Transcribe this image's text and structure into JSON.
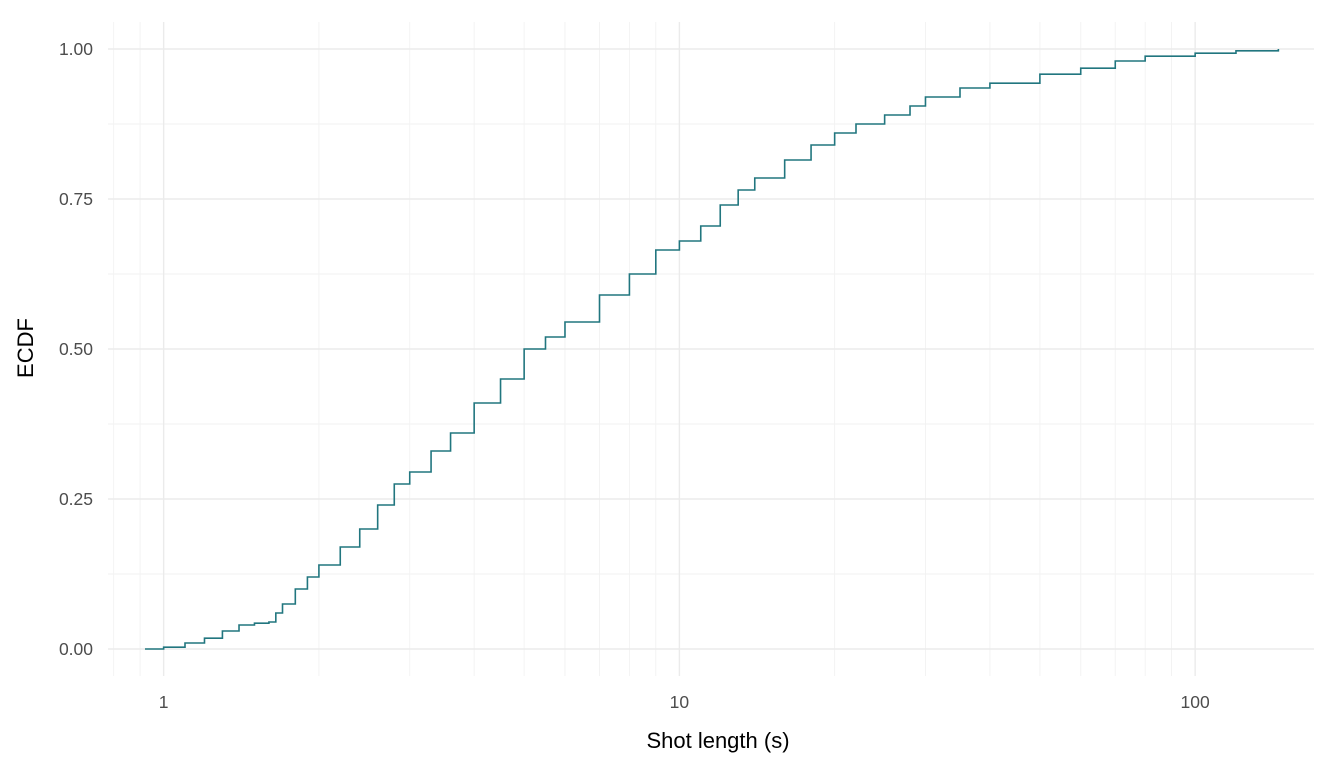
{
  "chart_data": {
    "type": "line",
    "step": true,
    "xlabel": "Shot length (s)",
    "ylabel": "ECDF",
    "x_scale": "log10",
    "xlim": [
      0.78,
      170
    ],
    "ylim": [
      -0.045,
      1.045
    ],
    "x_ticks": [
      1,
      10,
      100
    ],
    "x_tick_labels": [
      "1",
      "10",
      "100"
    ],
    "y_ticks": [
      0,
      0.25,
      0.5,
      0.75,
      1
    ],
    "y_tick_labels": [
      "0.00",
      "0.25",
      "0.50",
      "0.75",
      "1.00"
    ],
    "grid": true,
    "line_color": "#21767f",
    "series": [
      {
        "x": [
          0.92,
          1.0,
          1.1,
          1.2,
          1.3,
          1.4,
          1.5,
          1.6,
          1.65,
          1.7,
          1.8,
          1.9,
          2.0,
          2.2,
          2.4,
          2.6,
          2.8,
          3.0,
          3.3,
          3.6,
          4.0,
          4.5,
          5.0,
          5.5,
          6.0,
          7.0,
          8.0,
          9.0,
          10.0,
          11.0,
          12.0,
          13.0,
          14.0,
          16.0,
          18.0,
          20.0,
          22.0,
          25.0,
          28.0,
          30.0,
          35.0,
          40.0,
          50.0,
          60.0,
          70.0,
          80.0,
          100.0,
          120.0,
          145.0
        ],
        "y": [
          0.0,
          0.003,
          0.01,
          0.018,
          0.03,
          0.04,
          0.043,
          0.045,
          0.06,
          0.075,
          0.1,
          0.12,
          0.14,
          0.17,
          0.2,
          0.24,
          0.275,
          0.295,
          0.33,
          0.36,
          0.41,
          0.45,
          0.5,
          0.52,
          0.545,
          0.59,
          0.625,
          0.665,
          0.68,
          0.705,
          0.74,
          0.765,
          0.785,
          0.815,
          0.84,
          0.86,
          0.875,
          0.89,
          0.905,
          0.92,
          0.935,
          0.943,
          0.958,
          0.968,
          0.98,
          0.988,
          0.993,
          0.997,
          1.0
        ]
      }
    ]
  }
}
